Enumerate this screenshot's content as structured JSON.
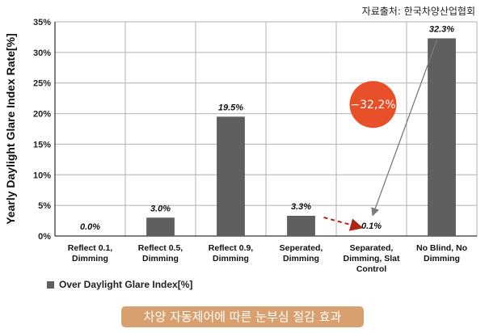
{
  "source_note": "자료출처: 한국차양산업협회",
  "caption": "차양 자동제어에 따른 눈부심 절감 효과",
  "annotation": {
    "text": "−32,2%",
    "color": "#e8502a"
  },
  "colors": {
    "bar": "#5f5f5f",
    "axis": "#000000",
    "grid": "#b0b0b0",
    "arrow_dashed": "#b02418",
    "arrow_solid": "#7a7a7a"
  },
  "chart_data": {
    "type": "bar",
    "ylabel": "Yearly Daylight Glare Index Rate[%]",
    "xlabel": "",
    "ylim": [
      0,
      35
    ],
    "yticks": [
      "0%",
      "5%",
      "10%",
      "15%",
      "20%",
      "25%",
      "30%",
      "35%"
    ],
    "grid": true,
    "legend_position": "bottom-left",
    "categories": [
      [
        "Reflect 0.1,",
        "Dimming"
      ],
      [
        "Reflect 0.5,",
        "Dimming"
      ],
      [
        "Reflect 0.9,",
        "Dimming"
      ],
      [
        "Seperated,",
        "Dimming"
      ],
      [
        "Separated,",
        "Dimming, Slat",
        "Control"
      ],
      [
        "No Blind, No",
        "Dimming"
      ]
    ],
    "series": [
      {
        "name": "Over Daylight Glare Index[%]",
        "values": [
          0.0,
          3.0,
          19.5,
          3.3,
          0.1,
          32.3
        ],
        "labels": [
          "0.0%",
          "3.0%",
          "19.5%",
          "3.3%",
          "0.1%",
          "32.3%"
        ]
      }
    ]
  }
}
